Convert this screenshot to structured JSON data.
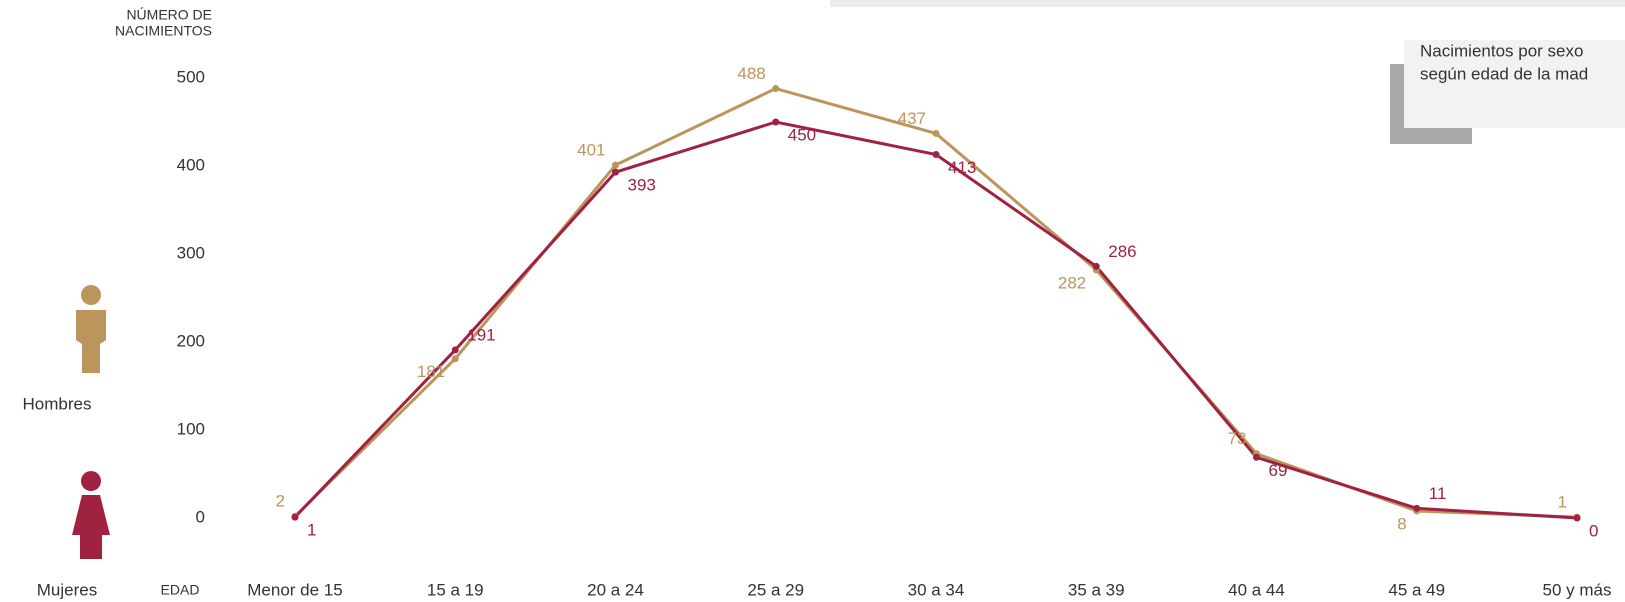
{
  "chart_data": {
    "type": "line",
    "y_label": [
      "NÚMERO DE",
      "NACIMIENTOS"
    ],
    "x_label": "EDAD",
    "annotation": [
      "Nacimientos por sexo",
      "según edad de la mad"
    ],
    "categories": [
      "Menor de 15",
      "15 a 19",
      "20 a 24",
      "25 a 29",
      "30 a 34",
      "35 a 39",
      "40 a 44",
      "45 a 49",
      "50 y más"
    ],
    "series": [
      {
        "name": "Hombres",
        "color": "#bc955c",
        "values": [
          2,
          181,
          401,
          488,
          437,
          282,
          73,
          8,
          1
        ]
      },
      {
        "name": "Mujeres",
        "color": "#9f2241",
        "values": [
          1,
          191,
          393,
          450,
          413,
          286,
          69,
          11,
          0
        ]
      }
    ],
    "ylim": [
      0,
      500
    ],
    "yticks": [
      0,
      100,
      200,
      300,
      400,
      500
    ]
  }
}
